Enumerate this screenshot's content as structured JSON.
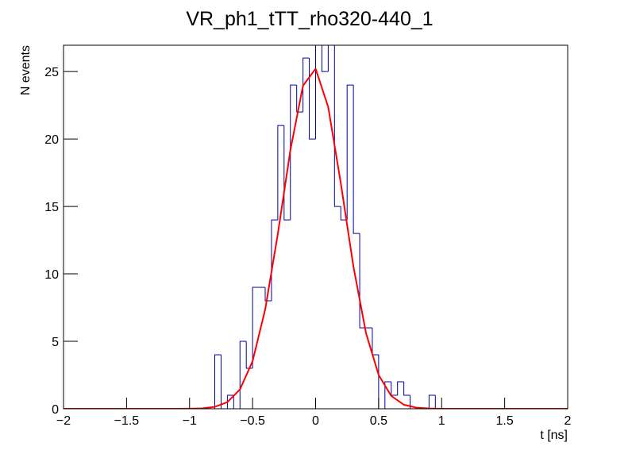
{
  "chart_data": {
    "type": "histogram",
    "title": "VR_ph1_tTT_rho320-440_1",
    "x_label": "t [ns]",
    "y_label": "N events",
    "bins": [
      -2,
      -1.95,
      -1.9,
      -1.85,
      -1.8,
      -1.75,
      -1.7,
      -1.65,
      -1.6,
      -1.55,
      -1.5,
      -1.45,
      -1.4,
      -1.35,
      -1.3,
      -1.25,
      -1.2,
      -1.15,
      -1.1,
      -1.05,
      -1,
      -0.95,
      -0.9,
      -0.85,
      -0.8,
      -0.75,
      -0.7,
      -0.65,
      -0.6,
      -0.55,
      -0.5,
      -0.45,
      -0.4,
      -0.35,
      -0.3,
      -0.25,
      -0.2,
      -0.15,
      -0.1,
      -0.05,
      0,
      0.05,
      0.1,
      0.15,
      0.2,
      0.25,
      0.3,
      0.35,
      0.4,
      0.45,
      0.5,
      0.55,
      0.6,
      0.65,
      0.7,
      0.75,
      0.8,
      0.85,
      0.9,
      0.95,
      1,
      1.05,
      1.1,
      1.15,
      1.2,
      1.25,
      1.3,
      1.35,
      1.4,
      1.45,
      1.5,
      1.55,
      1.6,
      1.65,
      1.7,
      1.75,
      1.8,
      1.85,
      1.9,
      1.95,
      2
    ],
    "values": [
      0,
      0,
      0,
      0,
      0,
      0,
      0,
      0,
      0,
      0,
      0,
      0,
      0,
      0,
      0,
      0,
      0,
      0,
      0,
      0,
      0,
      0,
      0,
      0,
      4,
      0,
      1,
      0,
      5,
      3,
      9,
      9,
      8,
      14,
      21,
      14,
      24,
      22,
      26,
      20,
      28,
      25,
      28,
      15,
      14,
      24,
      13,
      6,
      6,
      4,
      0,
      2,
      1,
      2,
      1,
      0,
      0,
      0,
      1,
      0,
      0,
      0,
      0,
      0,
      0,
      0,
      0,
      0,
      0,
      0,
      0,
      0,
      0,
      0,
      0,
      0,
      0,
      0,
      0,
      0
    ],
    "color": "#000099",
    "fit": {
      "x": [
        -2,
        -1.9,
        -1.8,
        -1.7,
        -1.6,
        -1.5,
        -1.4,
        -1.3,
        -1.2,
        -1.1,
        -1,
        -0.9,
        -0.8,
        -0.7,
        -0.6,
        -0.5,
        -0.4,
        -0.3,
        -0.2,
        -0.1,
        0,
        0.1,
        0.2,
        0.3,
        0.4,
        0.5,
        0.6,
        0.7,
        0.8,
        0.9,
        1,
        1.1,
        1.2,
        1.3,
        1.4,
        1.5,
        1.6,
        1.7,
        1.8,
        1.9,
        2
      ],
      "values": [
        0,
        0,
        0,
        0,
        0,
        0,
        0,
        0,
        0,
        0,
        0.01,
        0.03,
        0.14,
        0.49,
        1.43,
        3.53,
        7.36,
        12.95,
        19.18,
        23.95,
        25.21,
        22.37,
        16.72,
        10.55,
        5.6,
        2.51,
        0.95,
        0.3,
        0.08,
        0.02,
        0,
        0,
        0,
        0,
        0,
        0,
        0,
        0,
        0,
        0,
        0
      ],
      "color": "#ff0000"
    },
    "xlim": [
      -2,
      2
    ],
    "xticks": [
      {
        "value": -2,
        "label": "−2"
      },
      {
        "value": -1.5,
        "label": "−1.5"
      },
      {
        "value": -1,
        "label": "−1"
      },
      {
        "value": -0.5,
        "label": "−0.5"
      },
      0,
      0.5,
      1,
      1.5,
      2
    ],
    "ylim": [
      0,
      26.95
    ],
    "yticks": [
      0,
      5,
      10,
      15,
      20,
      25
    ],
    "grid": false
  }
}
